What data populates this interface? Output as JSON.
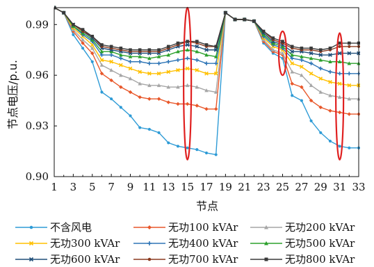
{
  "chart_data": {
    "type": "line",
    "title": "",
    "xlabel": "节点",
    "ylabel": "节点电压/p.u.",
    "xlim": [
      1,
      33
    ],
    "ylim": [
      0.9,
      1.0
    ],
    "x_ticks": [
      1,
      3,
      5,
      7,
      9,
      11,
      13,
      15,
      17,
      19,
      21,
      23,
      25,
      27,
      29,
      31,
      33
    ],
    "y_ticks": [
      0.9,
      0.93,
      0.96,
      0.99
    ],
    "y_tick_labels": [
      "0.90",
      "0.93",
      "0.96",
      "0.99"
    ],
    "grid": false,
    "legend_position": "bottom",
    "series": [
      {
        "name": "不含风电",
        "color": "#2e9bd6",
        "marker": "circle",
        "values": [
          1.0,
          0.997,
          0.984,
          0.976,
          0.968,
          0.95,
          0.946,
          0.941,
          0.936,
          0.929,
          0.928,
          0.926,
          0.92,
          0.918,
          0.917,
          0.916,
          0.914,
          0.913,
          0.997,
          0.993,
          0.993,
          0.992,
          0.979,
          0.973,
          0.97,
          0.948,
          0.945,
          0.933,
          0.926,
          0.921,
          0.918,
          0.917,
          0.917
        ]
      },
      {
        "name": "无功100 kVAr",
        "color": "#e8572a",
        "marker": "diamond",
        "values": [
          1.0,
          0.997,
          0.986,
          0.979,
          0.973,
          0.961,
          0.957,
          0.953,
          0.95,
          0.947,
          0.946,
          0.946,
          0.944,
          0.943,
          0.943,
          0.942,
          0.94,
          0.94,
          0.997,
          0.993,
          0.993,
          0.992,
          0.98,
          0.974,
          0.972,
          0.955,
          0.953,
          0.945,
          0.941,
          0.939,
          0.938,
          0.937,
          0.937
        ]
      },
      {
        "name": "无功200 kVAr",
        "color": "#a6a6a6",
        "marker": "triangle",
        "values": [
          1.0,
          0.997,
          0.987,
          0.981,
          0.976,
          0.966,
          0.963,
          0.96,
          0.958,
          0.955,
          0.954,
          0.954,
          0.953,
          0.953,
          0.954,
          0.953,
          0.951,
          0.95,
          0.997,
          0.993,
          0.993,
          0.992,
          0.981,
          0.975,
          0.973,
          0.962,
          0.96,
          0.954,
          0.95,
          0.948,
          0.947,
          0.946,
          0.946
        ]
      },
      {
        "name": "无功300 kVAr",
        "color": "#ffc000",
        "marker": "x",
        "values": [
          1.0,
          0.997,
          0.988,
          0.983,
          0.978,
          0.969,
          0.968,
          0.966,
          0.964,
          0.962,
          0.961,
          0.961,
          0.962,
          0.963,
          0.964,
          0.963,
          0.961,
          0.961,
          0.997,
          0.993,
          0.993,
          0.992,
          0.982,
          0.977,
          0.975,
          0.967,
          0.965,
          0.961,
          0.958,
          0.956,
          0.955,
          0.954,
          0.954
        ]
      },
      {
        "name": "无功400 kVAr",
        "color": "#2e75b6",
        "marker": "plus",
        "values": [
          1.0,
          0.997,
          0.989,
          0.984,
          0.98,
          0.972,
          0.972,
          0.97,
          0.968,
          0.968,
          0.967,
          0.967,
          0.968,
          0.969,
          0.97,
          0.969,
          0.967,
          0.967,
          0.997,
          0.993,
          0.993,
          0.992,
          0.983,
          0.978,
          0.976,
          0.97,
          0.969,
          0.967,
          0.964,
          0.962,
          0.961,
          0.961,
          0.961
        ]
      },
      {
        "name": "无功500 kVAr",
        "color": "#2ca02c",
        "marker": "triangle",
        "values": [
          1.0,
          0.997,
          0.989,
          0.985,
          0.981,
          0.974,
          0.974,
          0.972,
          0.971,
          0.971,
          0.97,
          0.971,
          0.972,
          0.974,
          0.975,
          0.974,
          0.972,
          0.971,
          0.997,
          0.993,
          0.993,
          0.992,
          0.984,
          0.979,
          0.977,
          0.972,
          0.971,
          0.97,
          0.969,
          0.968,
          0.968,
          0.967,
          0.967
        ]
      },
      {
        "name": "无功600 kVAr",
        "color": "#1f4e79",
        "marker": "x",
        "values": [
          1.0,
          0.997,
          0.99,
          0.986,
          0.982,
          0.976,
          0.975,
          0.974,
          0.973,
          0.973,
          0.973,
          0.973,
          0.975,
          0.977,
          0.978,
          0.977,
          0.975,
          0.975,
          0.997,
          0.993,
          0.993,
          0.992,
          0.985,
          0.98,
          0.978,
          0.974,
          0.974,
          0.973,
          0.972,
          0.972,
          0.973,
          0.973,
          0.973
        ]
      },
      {
        "name": "无功700 kVAr",
        "color": "#8b3a1e",
        "marker": "circle",
        "values": [
          1.0,
          0.997,
          0.99,
          0.986,
          0.983,
          0.977,
          0.976,
          0.975,
          0.974,
          0.974,
          0.974,
          0.974,
          0.976,
          0.978,
          0.98,
          0.979,
          0.977,
          0.977,
          0.997,
          0.993,
          0.993,
          0.992,
          0.986,
          0.981,
          0.979,
          0.976,
          0.975,
          0.975,
          0.974,
          0.975,
          0.977,
          0.977,
          0.977
        ]
      },
      {
        "name": "无功800 kVAr",
        "color": "#3a3a3a",
        "marker": "square",
        "values": [
          1.0,
          0.997,
          0.99,
          0.987,
          0.983,
          0.978,
          0.977,
          0.976,
          0.975,
          0.975,
          0.975,
          0.975,
          0.977,
          0.979,
          0.98,
          0.98,
          0.978,
          0.977,
          0.997,
          0.993,
          0.993,
          0.992,
          0.986,
          0.982,
          0.98,
          0.977,
          0.976,
          0.976,
          0.975,
          0.976,
          0.979,
          0.979,
          0.979
        ]
      }
    ],
    "annotations": [
      {
        "type": "ellipse",
        "color": "#e02020",
        "x": 15,
        "y_range": [
          0.91,
          1.0
        ]
      },
      {
        "type": "ellipse",
        "color": "#e02020",
        "x": 25,
        "y_range": [
          0.96,
          0.986
        ]
      },
      {
        "type": "ellipse",
        "color": "#e02020",
        "x": 31,
        "y_range": [
          0.91,
          0.985
        ]
      }
    ]
  }
}
